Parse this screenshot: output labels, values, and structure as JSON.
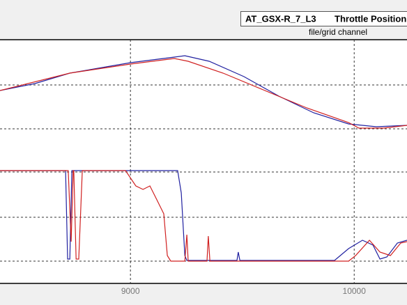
{
  "legend_box": {
    "file": "AT_GSX-R_7_L3",
    "channel": "Throttle Position",
    "caption": "file/grid channel"
  },
  "chart_data": {
    "type": "line",
    "xlim": [
      8417,
      10236
    ],
    "xticks": [
      9000,
      10000
    ],
    "ylim": [
      0,
      350
    ],
    "yticks": [
      32,
      95,
      160,
      222,
      285
    ],
    "grid": true,
    "series": [
      {
        "color": "#2020a0",
        "x": [
          8417,
          8573,
          8729,
          9000,
          9196,
          9243,
          9352,
          9507,
          9663,
          9819,
          9975,
          10099,
          10236
        ],
        "values": [
          277,
          287,
          302,
          317,
          325,
          327,
          319,
          297,
          269,
          245,
          229,
          225,
          227
        ]
      },
      {
        "color": "#d02020",
        "x": [
          8417,
          8729,
          9000,
          9196,
          9258,
          9414,
          9601,
          9788,
          9975,
          10021,
          10130,
          10236
        ],
        "values": [
          277,
          302,
          315,
          323,
          319,
          302,
          277,
          252,
          231,
          223,
          223,
          227
        ]
      },
      {
        "color": "#2020a0",
        "x": [
          8417,
          8710,
          8719,
          8729,
          8738,
          9211,
          9227,
          9243,
          9252,
          9476,
          9482,
          9489,
          9912,
          9975,
          10037,
          10084,
          10115,
          10146,
          10193,
          10236
        ],
        "values": [
          162,
          162,
          35,
          35,
          162,
          162,
          130,
          40,
          33,
          33,
          45,
          33,
          33,
          50,
          62,
          55,
          35,
          38,
          58,
          62
        ]
      },
      {
        "color": "#d02020",
        "x": [
          8417,
          8722,
          8735,
          8744,
          8747,
          8757,
          8769,
          8785,
          8978,
          9024,
          9056,
          9087,
          9118,
          9149,
          9165,
          9180,
          9243,
          9252,
          9258,
          9342,
          9348,
          9355,
          9975,
          10006,
          10068,
          10115,
          10162,
          10208,
          10236
        ],
        "values": [
          162,
          162,
          60,
          162,
          162,
          35,
          35,
          162,
          162,
          140,
          135,
          140,
          120,
          100,
          40,
          32,
          32,
          70,
          32,
          32,
          68,
          32,
          32,
          40,
          62,
          45,
          40,
          58,
          60
        ]
      }
    ]
  }
}
